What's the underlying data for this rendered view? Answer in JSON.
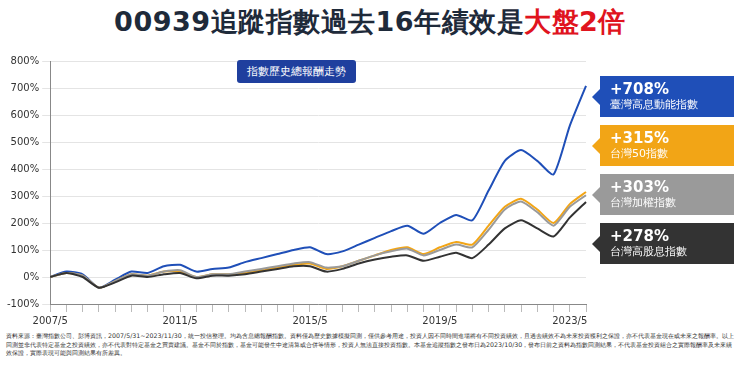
{
  "chart_data": {
    "type": "line",
    "title": "00939追蹤指數過去16年績效是大盤2倍",
    "title_highlight": "大盤2倍",
    "subtitle": "指數歷史總報酬走勢",
    "note": "資料來源：臺灣指數公司、彭博資訊，2007/5/31~2023/11/30，統一投信整理。均為含息總報酬指數。資料僅為歷史數據模擬回測，僅供參考用途，投資人因不同時間進場將有不同投資績效，且過去績效不為未來投資獲利之保證，亦不代表基金現在或未來之報酬率。以上回測並非代表特定基金之投資績效，亦不代表對特定基金之買賣建議。基金不同於指數，基金可能發生中途清算或合併等情形，投資人無法直接投資指數。本基金追蹤指數之發布日為2023/10/30，發布日前之資料為指數回測結果，不代表基金投資組合之實際報酬率及未來績效保證，實際表現可能與回測結果有所差異。",
    "categories": [
      "2007/5",
      null,
      null,
      null,
      null,
      null,
      null,
      null,
      "2011/5",
      null,
      null,
      null,
      null,
      null,
      null,
      null,
      "2015/5",
      null,
      null,
      null,
      null,
      null,
      null,
      null,
      "2019/5",
      null,
      null,
      null,
      null,
      null,
      null,
      null,
      "2023/5",
      null
    ],
    "series": [
      {
        "name": "臺灣高息動能指數",
        "label": "+708%",
        "color": "#1f4fb8",
        "values": [
          0,
          20,
          10,
          -40,
          -10,
          20,
          15,
          40,
          45,
          20,
          30,
          35,
          55,
          70,
          85,
          100,
          110,
          85,
          95,
          120,
          145,
          170,
          190,
          160,
          200,
          230,
          210,
          320,
          430,
          470,
          430,
          380,
          560,
          708
        ]
      },
      {
        "name": "台灣50指數",
        "label": "+315%",
        "color": "#f2a516",
        "values": [
          0,
          15,
          5,
          -40,
          -15,
          10,
          5,
          20,
          20,
          0,
          10,
          10,
          15,
          25,
          35,
          45,
          50,
          30,
          40,
          60,
          80,
          100,
          110,
          85,
          110,
          130,
          120,
          190,
          260,
          290,
          250,
          200,
          270,
          315
        ]
      },
      {
        "name": "台灣加權指數",
        "label": "+303%",
        "color": "#9a9a9a",
        "values": [
          0,
          15,
          5,
          -40,
          -15,
          10,
          5,
          20,
          25,
          0,
          10,
          10,
          20,
          30,
          40,
          50,
          55,
          35,
          40,
          60,
          80,
          95,
          105,
          80,
          100,
          120,
          110,
          175,
          250,
          280,
          240,
          190,
          260,
          303
        ]
      },
      {
        "name": "台灣高股息指數",
        "label": "+278%",
        "color": "#333333",
        "values": [
          0,
          15,
          0,
          -40,
          -20,
          5,
          0,
          10,
          15,
          -5,
          5,
          5,
          10,
          20,
          30,
          40,
          40,
          20,
          30,
          50,
          65,
          75,
          80,
          60,
          75,
          90,
          70,
          120,
          180,
          210,
          180,
          150,
          220,
          278
        ]
      }
    ],
    "ylim": [
      -100,
      800
    ],
    "yticks": [
      {
        "value": -100,
        "label": "-100%"
      },
      {
        "value": 0,
        "label": "0%"
      },
      {
        "value": 100,
        "label": "100%"
      },
      {
        "value": 200,
        "label": "200%"
      },
      {
        "value": 300,
        "label": "300%"
      },
      {
        "value": 400,
        "label": "400%"
      },
      {
        "value": 500,
        "label": "500%"
      },
      {
        "value": 600,
        "label": "600%"
      },
      {
        "value": 700,
        "label": "700%"
      },
      {
        "value": 800,
        "label": "800%"
      }
    ],
    "grid": true
  }
}
